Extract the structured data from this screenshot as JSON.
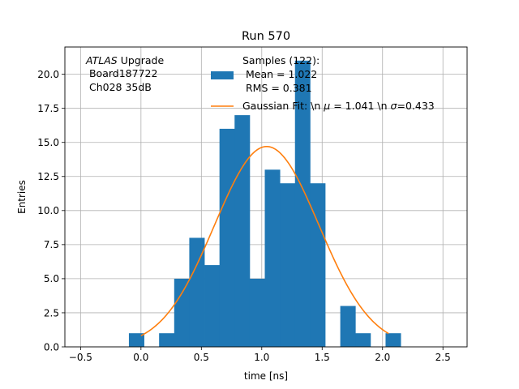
{
  "chart_data": {
    "type": "bar",
    "title": "Run 570",
    "xlabel": "time [ns]",
    "ylabel": "Entries",
    "xlim": [
      -0.63,
      2.7
    ],
    "ylim": [
      0,
      22
    ],
    "grid": true,
    "x_ticks": [
      -0.5,
      0.0,
      0.5,
      1.0,
      1.5,
      2.0,
      2.5
    ],
    "x_tick_labels": [
      "−0.5",
      "0.0",
      "0.5",
      "1.0",
      "1.5",
      "2.0",
      "2.5"
    ],
    "y_ticks": [
      0,
      2.5,
      5,
      7.5,
      10,
      12.5,
      15,
      17.5,
      20
    ],
    "y_tick_labels": [
      "0.0",
      "2.5",
      "5.0",
      "7.5",
      "10.0",
      "12.5",
      "15.0",
      "17.5",
      "20.0"
    ],
    "bin_width": 0.125,
    "histogram": {
      "name": "Samples (122):\n Mean = 1.022\n RMS = 0.381",
      "color": "#1f77b4",
      "bin_lefts": [
        -0.1,
        0.15,
        0.275,
        0.4,
        0.525,
        0.65,
        0.775,
        0.9,
        1.025,
        1.15,
        1.275,
        1.4,
        1.65,
        1.775,
        2.025
      ],
      "counts": [
        1,
        1,
        5,
        8,
        6,
        16,
        17,
        5,
        13,
        12,
        21,
        12,
        3,
        1,
        1
      ]
    },
    "fit": {
      "name": "Gaussian Fit: \\n $\\mu$ = 1.041 \\n $\\sigma$=0.433",
      "color": "#ff7f0e",
      "mu": 1.041,
      "sigma": 0.433,
      "amplitude": 14.7,
      "x_range": [
        0.0,
        2.05
      ]
    },
    "annotation": {
      "line1_italic": "ATLAS",
      "line1_rest": " Upgrade",
      "line2": " Board187722",
      "line3": " Ch028 35dB"
    },
    "legend": {
      "placement": "top-center",
      "hist_lines": [
        "Samples (122):",
        " Mean = 1.022",
        " RMS = 0.381"
      ],
      "fit_label_pre": "Gaussian Fit: \\n ",
      "fit_mu_symbol": "μ",
      "fit_label_mid": " = 1.041 \\n ",
      "fit_sigma_symbol": "σ",
      "fit_label_post": "=0.433"
    }
  }
}
